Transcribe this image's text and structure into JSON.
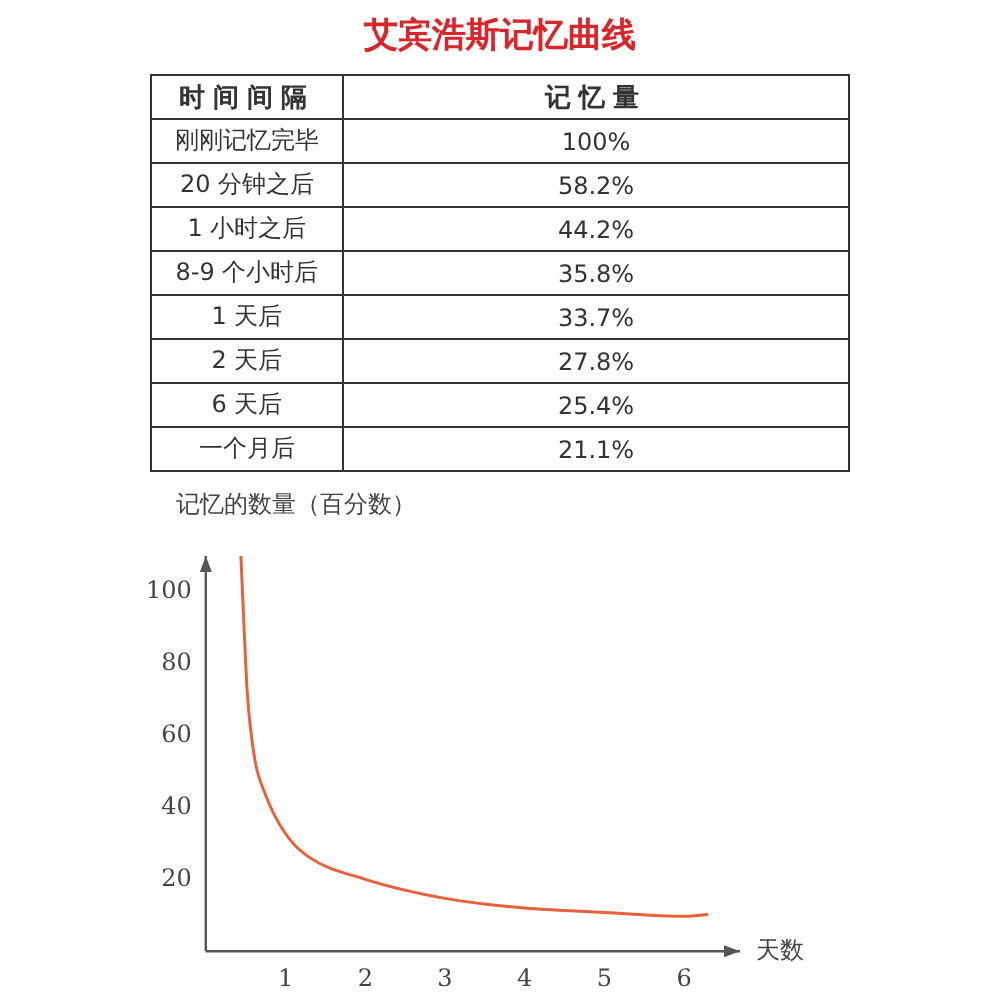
{
  "chart_data": [
    {
      "type": "other",
      "title": "艾宾浩斯记忆曲线",
      "xlabel": "时间间隔",
      "ylabel": "记忆量",
      "categories": [
        "刚刚记忆完毕",
        "20 分钟之后",
        "1 小时之后",
        "8-9 个小时后",
        "1 天后",
        "2 天后",
        "6 天后",
        "一个月后"
      ],
      "value_labels": [
        "100%",
        "58.2%",
        "44.2%",
        "35.8%",
        "33.7%",
        "27.8%",
        "25.4%",
        "21.1%"
      ]
    },
    {
      "type": "line",
      "ylabel": "记忆的数量（百分数）",
      "xlabel": "天数",
      "xlim": [
        0,
        6.7
      ],
      "ylim": [
        0,
        110
      ],
      "xticks": [
        1,
        2,
        3,
        4,
        5,
        6
      ],
      "yticks": [
        20,
        40,
        60,
        80,
        100
      ],
      "grid": false,
      "legend": false,
      "marker": "none",
      "series": [
        {
          "color": "#e8603c",
          "x": [
            0.44,
            0.48,
            0.52,
            0.61,
            0.75,
            1,
            1.28,
            2,
            3,
            4,
            5,
            6,
            6.3
          ],
          "values": [
            110,
            90,
            72,
            54,
            43.5,
            32.7,
            26.4,
            20,
            14.7,
            12,
            10.8,
            9.7,
            10.2
          ]
        }
      ]
    }
  ]
}
